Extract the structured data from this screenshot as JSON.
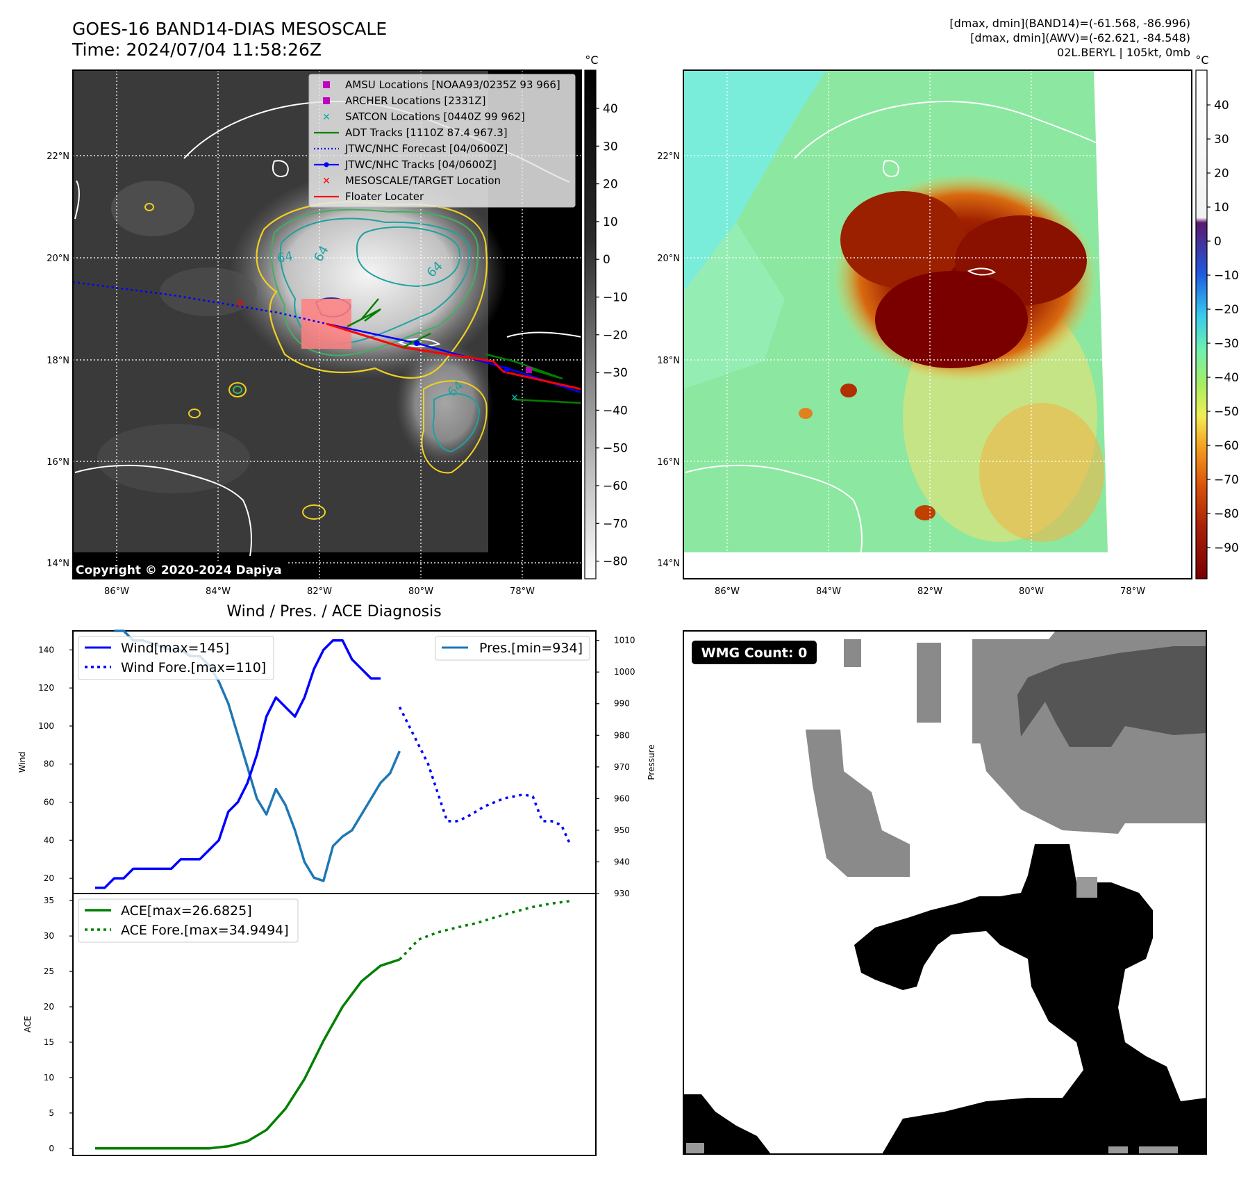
{
  "header": {
    "title": "GOES-16 BAND14-DIAS MESOSCALE",
    "time": "Time: 2024/07/04 11:58:26Z",
    "stats_band14": "[dmax, dmin](BAND14)=(-61.568, -86.996)",
    "stats_awv": "[dmax, dmin](AWV)=(-62.621, -84.548)",
    "storm": "02L.BERYL | 105kt, 0mb"
  },
  "map": {
    "lat_labels": [
      "22°N",
      "20°N",
      "18°N",
      "16°N",
      "14°N"
    ],
    "lon_labels": [
      "86°W",
      "84°W",
      "82°W",
      "80°W",
      "78°W"
    ],
    "copyright": "Copyright © 2020-2024 Dapiya",
    "contour_labels": [
      "64",
      "64",
      "64",
      "64"
    ],
    "legend": [
      {
        "label": "AMSU Locations [NOAA93/0235Z 93 966]",
        "color": "#c000c0",
        "marker": "square"
      },
      {
        "label": "ARCHER Locations [2331Z]",
        "color": "#c000c0",
        "marker": "square"
      },
      {
        "label": "SATCON Locations [0440Z 99 962]",
        "color": "#00b0b0",
        "marker": "x"
      },
      {
        "label": "ADT Tracks [1110Z 87.4 967.3]",
        "color": "#008000",
        "marker": "line"
      },
      {
        "label": "JTWC/NHC Forecast [04/0600Z]",
        "color": "#0000ff",
        "marker": "dotted"
      },
      {
        "label": "JTWC/NHC Tracks [04/0600Z]",
        "color": "#0000ff",
        "marker": "line-dot"
      },
      {
        "label": "MESOSCALE/TARGET Location",
        "color": "#ff0000",
        "marker": "x"
      },
      {
        "label": "Floater Locater",
        "color": "#ff0000",
        "marker": "line"
      }
    ]
  },
  "colorbar_gray": {
    "unit": "°C",
    "ticks": [
      "40",
      "30",
      "20",
      "10",
      "0",
      "−10",
      "−20",
      "−30",
      "−40",
      "−50",
      "−60",
      "−70",
      "−80"
    ]
  },
  "colorbar_color": {
    "unit": "°C",
    "ticks": [
      "40",
      "30",
      "20",
      "10",
      "0",
      "−10",
      "−20",
      "−30",
      "−40",
      "−50",
      "−60",
      "−70",
      "−80",
      "−90"
    ]
  },
  "wmg": {
    "badge": "WMG Count: 0"
  },
  "diagnosis": {
    "title": "Wind / Pres. / ACE Diagnosis",
    "wind_ylabel": "Wind",
    "pres_ylabel": "Pressure",
    "ace_ylabel": "ACE",
    "legend_wind": "Wind[max=145]",
    "legend_wind_fore": "Wind Fore.[max=110]",
    "legend_pres": "Pres.[min=934]",
    "legend_ace": "ACE[max=26.6825]",
    "legend_ace_fore": "ACE Fore.[max=34.9494]",
    "wind_ticks": [
      "140",
      "120",
      "100",
      "80",
      "60",
      "40",
      "20"
    ],
    "pres_ticks": [
      "1010",
      "1000",
      "990",
      "980",
      "970",
      "960",
      "950",
      "940",
      "930"
    ],
    "ace_ticks": [
      "35",
      "30",
      "25",
      "20",
      "15",
      "10",
      "5",
      "0"
    ]
  },
  "chart_data": {
    "type": "line",
    "title": "Wind / Pres. / ACE Diagnosis",
    "x": [
      0,
      1,
      2,
      3,
      4,
      5,
      6,
      7,
      8,
      9,
      10,
      11,
      12,
      13,
      14,
      15,
      16,
      17,
      18,
      19,
      20,
      21,
      22,
      23,
      24,
      25,
      26,
      27,
      28,
      29,
      30,
      31,
      32,
      33,
      34,
      35,
      36,
      37,
      38,
      39,
      40,
      41,
      42,
      43,
      44,
      45,
      46,
      47,
      48,
      49,
      50
    ],
    "ylim_wind": [
      12,
      150
    ],
    "ylim_pressure": [
      930,
      1013
    ],
    "ylim_ace": [
      -1,
      36
    ],
    "series": [
      {
        "name": "Wind[max=145]",
        "color": "#0000ff",
        "style": "solid",
        "x": [
          0,
          1,
          2,
          3,
          4,
          5,
          6,
          7,
          8,
          9,
          10,
          11,
          12,
          13,
          14,
          15,
          16,
          17,
          18,
          19,
          20,
          21,
          22,
          23,
          24,
          25,
          26,
          27,
          28,
          29,
          30
        ],
        "values": [
          15,
          15,
          20,
          20,
          25,
          25,
          25,
          25,
          25,
          30,
          30,
          30,
          35,
          40,
          55,
          60,
          70,
          85,
          105,
          115,
          110,
          105,
          115,
          130,
          140,
          145,
          145,
          135,
          130,
          125,
          125
        ]
      },
      {
        "name": "Wind Fore.[max=110]",
        "color": "#0000ff",
        "style": "dotted",
        "x": [
          32,
          33,
          34,
          35,
          36,
          37,
          38,
          39,
          40,
          41,
          42,
          43,
          44,
          45,
          46,
          47,
          48,
          49,
          50
        ],
        "values": [
          110,
          100,
          90,
          80,
          65,
          50,
          50,
          52,
          55,
          58,
          60,
          62,
          63,
          64,
          63,
          50,
          50,
          48,
          37
        ]
      },
      {
        "name": "Pres.[min=934]",
        "color": "#1f77b4",
        "style": "solid",
        "x": [
          2,
          3,
          4,
          5,
          6,
          7,
          8,
          9,
          10,
          11,
          12,
          13,
          14,
          15,
          16,
          17,
          18,
          19,
          20,
          21,
          22,
          23,
          24,
          25,
          26,
          27,
          28,
          29,
          30,
          31,
          32
        ],
        "values": [
          1013,
          1013,
          1010,
          1010,
          1009,
          1008,
          1007,
          1007,
          1005,
          1005,
          1002,
          997,
          990,
          980,
          970,
          960,
          955,
          963,
          958,
          950,
          940,
          935,
          934,
          945,
          948,
          950,
          955,
          960,
          965,
          968,
          975
        ]
      },
      {
        "name": "ACE[max=26.6825]",
        "color": "#008000",
        "style": "solid",
        "x": [
          0,
          2,
          4,
          6,
          8,
          10,
          12,
          14,
          16,
          18,
          20,
          22,
          24,
          26,
          28,
          30,
          32
        ],
        "values": [
          0,
          0,
          0,
          0,
          0,
          0,
          0,
          0.3,
          1.0,
          2.6,
          5.6,
          9.8,
          15.2,
          20.0,
          23.6,
          25.8,
          26.68
        ]
      },
      {
        "name": "ACE Fore.[max=34.9494]",
        "color": "#008000",
        "style": "dotted",
        "x": [
          32,
          34,
          36,
          38,
          40,
          42,
          44,
          46,
          48,
          50
        ],
        "values": [
          26.68,
          29.5,
          30.5,
          31.2,
          31.8,
          32.6,
          33.4,
          34.1,
          34.6,
          34.95
        ]
      }
    ]
  }
}
